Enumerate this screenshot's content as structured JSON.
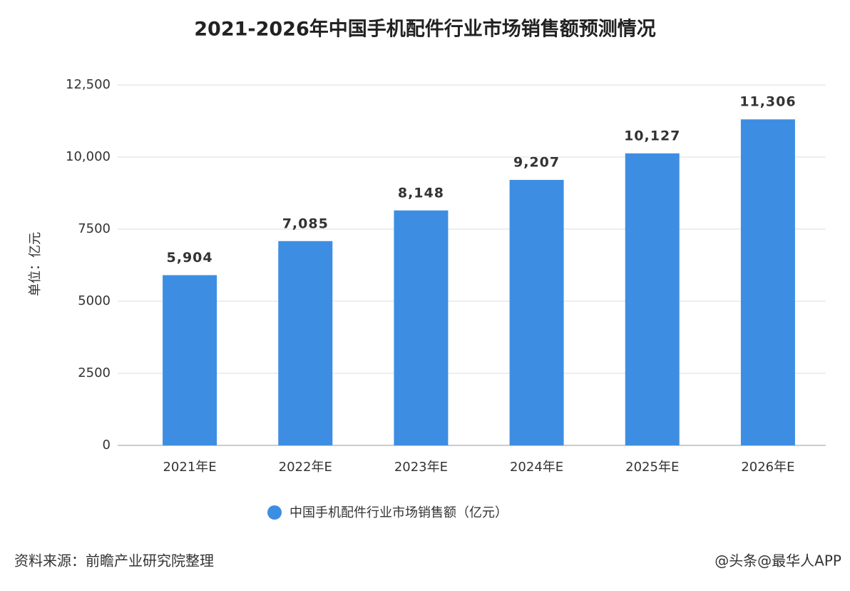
{
  "chart_data": {
    "type": "bar",
    "title": "2021-2026年中国手机配件行业市场销售额预测情况",
    "y_label": "单位：亿元",
    "categories": [
      "2021年E",
      "2022年E",
      "2023年E",
      "2024年E",
      "2025年E",
      "2026年E"
    ],
    "series": [
      {
        "name": "中国手机配件行业市场销售额（亿元）",
        "color": "#3d8ee3",
        "values": [
          5904,
          7085,
          8148,
          9207,
          10127,
          11306
        ],
        "value_labels": [
          "5,904",
          "7,085",
          "8,148",
          "9,207",
          "10,127",
          "11,306"
        ]
      }
    ],
    "ylim": [
      0,
      12500
    ],
    "yticks": [
      0,
      2500,
      5000,
      7500,
      {
        "value": 10000,
        "label": "10,000"
      },
      {
        "value": 12500,
        "label": "12,500"
      }
    ],
    "grid": true,
    "legend": "bottom",
    "source": "资料来源：前瞻产业研究院整理",
    "watermark": "@头条@最华人APP"
  }
}
